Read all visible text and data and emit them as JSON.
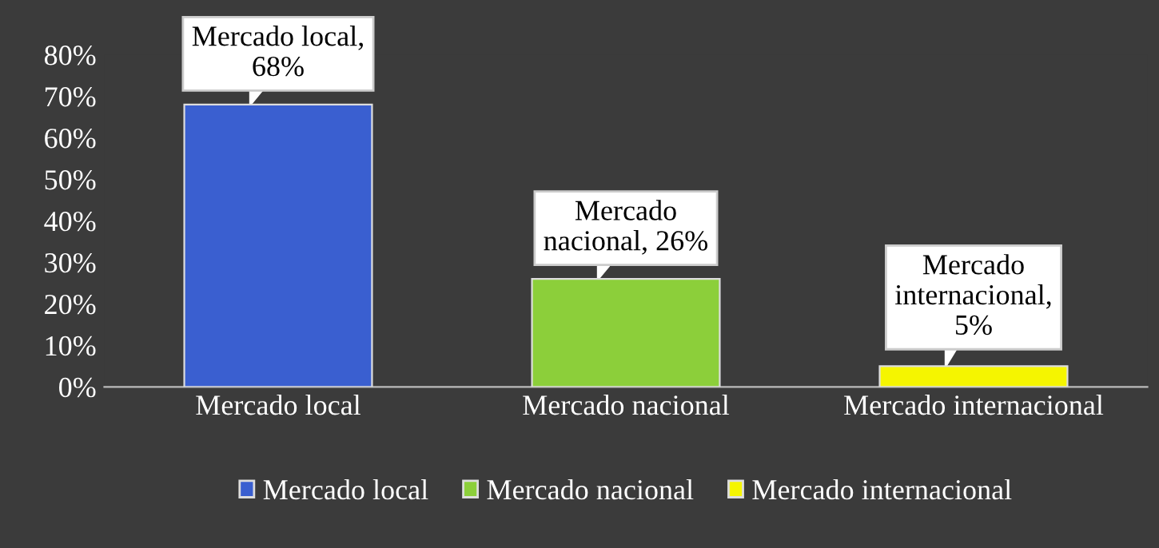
{
  "chart_data": {
    "type": "bar",
    "categories": [
      "Mercado local",
      "Mercado nacional",
      "Mercado internacional"
    ],
    "series": [
      {
        "name": "Mercado local",
        "color": "#3a5fd0",
        "values": [
          68,
          null,
          null
        ]
      },
      {
        "name": "Mercado nacional",
        "color": "#8ccf3a",
        "values": [
          null,
          26,
          null
        ]
      },
      {
        "name": "Mercado internacional",
        "color": "#f5f500",
        "values": [
          null,
          null,
          5
        ]
      }
    ],
    "value_labels": [
      "Mercado local,\n68%",
      "Mercado\nnacional, 26%",
      "Mercado\ninternacional,\n5%"
    ],
    "ylim": [
      0,
      80
    ],
    "yticks": [
      {
        "value": 0,
        "label": "0%"
      },
      {
        "value": 10,
        "label": "10%"
      },
      {
        "value": 20,
        "label": "20%"
      },
      {
        "value": 30,
        "label": "30%"
      },
      {
        "value": 40,
        "label": "40%"
      },
      {
        "value": 50,
        "label": "50%"
      },
      {
        "value": 60,
        "label": "60%"
      },
      {
        "value": 70,
        "label": "70%"
      },
      {
        "value": 80,
        "label": "80%"
      }
    ],
    "grid": false,
    "legend": "bottom"
  }
}
